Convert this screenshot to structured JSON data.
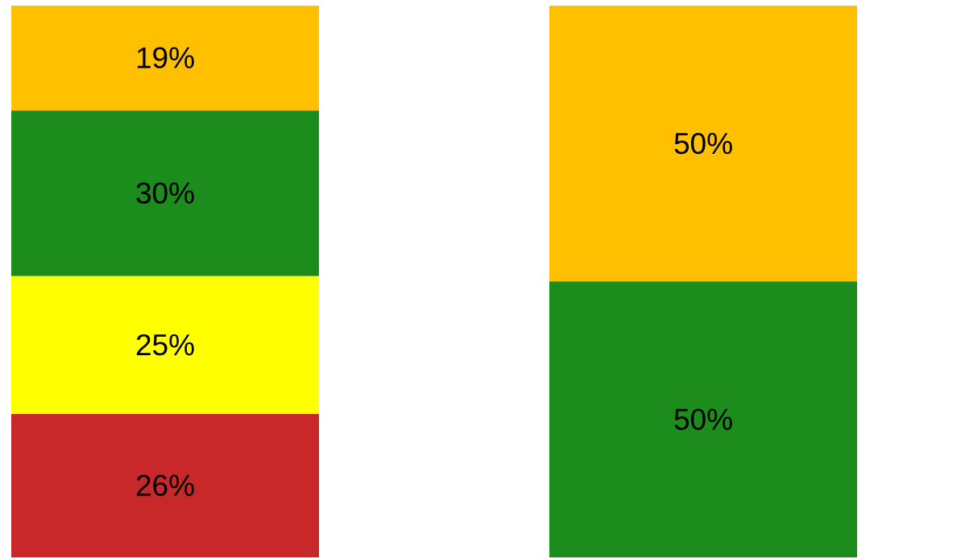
{
  "chart_data": {
    "type": "bar",
    "stacked": "percent",
    "categories": [
      "",
      ""
    ],
    "bars": [
      {
        "segments": [
          {
            "value": 26,
            "label": "26%",
            "color": "#C9282B"
          },
          {
            "value": 25,
            "label": "25%",
            "color": "#FFFF00"
          },
          {
            "value": 30,
            "label": "30%",
            "color": "#1C8C1C"
          },
          {
            "value": 19,
            "label": "19%",
            "color": "#FFC000"
          }
        ]
      },
      {
        "segments": [
          {
            "value": 50,
            "label": "50%",
            "color": "#1C8C1C"
          },
          {
            "value": 50,
            "label": "50%",
            "color": "#FFC000"
          }
        ]
      }
    ],
    "ylim": [
      0,
      100
    ],
    "grid": false,
    "legend": "none",
    "title": "",
    "xlabel": "",
    "ylabel": ""
  }
}
